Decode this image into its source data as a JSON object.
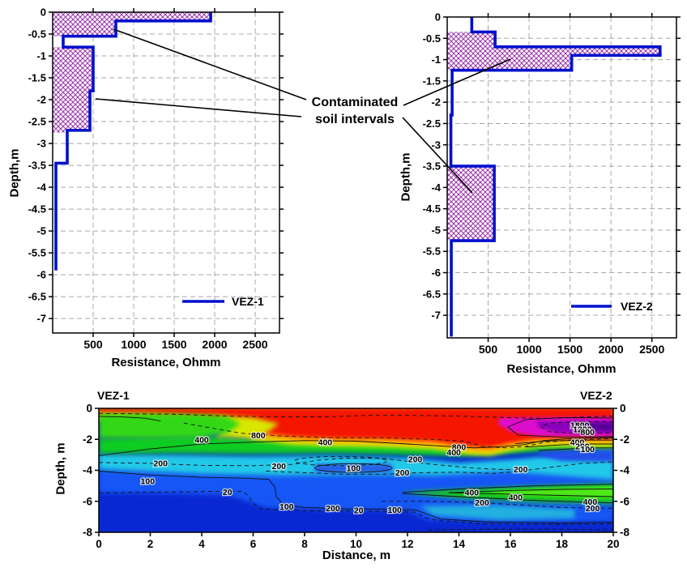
{
  "annotation": {
    "line1": "Contaminated",
    "line2": "soil intervals"
  },
  "colors": {
    "curve_blue": "#0010CC",
    "hatch_purple": "#9933AA",
    "grid_gray": "#A8A8A8",
    "contour_line": "#111111",
    "field_deep_blue": "#0A28D2",
    "field_mid_blue": "#1857F5",
    "field_cyan": "#20C8E8",
    "field_green": "#10CC20",
    "field_yellow": "#E8E800",
    "field_orange": "#FF9800",
    "field_red": "#F51505",
    "field_magenta": "#DD10CC",
    "field_violet": "#8800BB"
  },
  "chart_data": [
    {
      "type": "line",
      "id": "vez1",
      "legend": "VEZ-1",
      "xlabel": "Resistance, Ohmm",
      "ylabel": "Depth,m",
      "xlim": [
        0,
        2800
      ],
      "depth_max": 7.33,
      "xticks": [
        500,
        1000,
        1500,
        2000,
        2500
      ],
      "yticks": [
        0,
        -0.5,
        -1,
        -1.5,
        -2,
        -2.5,
        -3,
        -3.5,
        -4,
        -4.5,
        -5,
        -5.5,
        -6,
        -6.5,
        -7
      ],
      "steps": [
        [
          0,
          0.2,
          1950
        ],
        [
          0.2,
          0.55,
          780
        ],
        [
          0.55,
          0.8,
          130
        ],
        [
          0.8,
          1.8,
          500
        ],
        [
          1.8,
          2.7,
          460
        ],
        [
          2.7,
          3.45,
          180
        ],
        [
          3.45,
          5.9,
          40
        ]
      ],
      "contaminated_intervals": [
        [
          0,
          0.55
        ],
        [
          0.8,
          2.75
        ]
      ]
    },
    {
      "type": "line",
      "id": "vez2",
      "legend": "VEZ-2",
      "xlabel": "Resistance, Ohmm",
      "ylabel": "Depth,m",
      "xlim": [
        0,
        2800
      ],
      "depth_max": 7.53,
      "xticks": [
        500,
        1000,
        1500,
        2000,
        2500
      ],
      "yticks": [
        0,
        -0.5,
        -1,
        -1.5,
        -2,
        -2.5,
        -3,
        -3.5,
        -4,
        -4.5,
        -5,
        -5.5,
        -6,
        -6.5,
        -7
      ],
      "steps": [
        [
          0,
          0.35,
          300
        ],
        [
          0.35,
          0.7,
          585
        ],
        [
          0.7,
          0.9,
          2600
        ],
        [
          0.9,
          1.25,
          1520
        ],
        [
          1.25,
          2.3,
          60
        ],
        [
          2.3,
          3.5,
          45
        ],
        [
          3.5,
          5.25,
          575
        ],
        [
          5.25,
          7.5,
          50
        ]
      ],
      "contaminated_intervals": [
        [
          0.35,
          1.25
        ],
        [
          3.5,
          5.25
        ]
      ]
    },
    {
      "type": "heatmap",
      "id": "section",
      "left_label": "VEZ-1",
      "right_label": "VEZ-2",
      "xlabel": "Distance, m",
      "ylabel": "Depth, m",
      "xlim": [
        0,
        20
      ],
      "ylim": [
        -8,
        0
      ],
      "xticks": [
        0,
        2,
        4,
        6,
        8,
        10,
        12,
        14,
        16,
        18,
        20
      ],
      "yticks": [
        0,
        -2,
        -4,
        -6,
        -8
      ],
      "contour_levels": [
        20,
        100,
        200,
        400,
        800,
        1200,
        1800
      ],
      "labels": [
        {
          "v": "800",
          "x": 6.2,
          "d": 1.75
        },
        {
          "v": "400",
          "x": 4.0,
          "d": 2.05
        },
        {
          "v": "400",
          "x": 8.8,
          "d": 2.2
        },
        {
          "v": "800",
          "x": 14.0,
          "d": 2.5
        },
        {
          "v": "400",
          "x": 13.8,
          "d": 2.85
        },
        {
          "v": "200",
          "x": 12.3,
          "d": 3.3
        },
        {
          "v": "200",
          "x": 2.4,
          "d": 3.55
        },
        {
          "v": "200",
          "x": 7.0,
          "d": 3.75
        },
        {
          "v": "100",
          "x": 9.9,
          "d": 3.88
        },
        {
          "v": "200",
          "x": 11.8,
          "d": 4.15
        },
        {
          "v": "200",
          "x": 16.4,
          "d": 3.95
        },
        {
          "v": "100",
          "x": 1.9,
          "d": 4.7
        },
        {
          "v": "20",
          "x": 5.0,
          "d": 5.4
        },
        {
          "v": "100",
          "x": 7.3,
          "d": 6.35
        },
        {
          "v": "200",
          "x": 9.1,
          "d": 6.45
        },
        {
          "v": "20",
          "x": 10.1,
          "d": 6.6
        },
        {
          "v": "100",
          "x": 11.5,
          "d": 6.55
        },
        {
          "v": "200",
          "x": 14.9,
          "d": 6.1
        },
        {
          "v": "400",
          "x": 14.5,
          "d": 5.45
        },
        {
          "v": "400",
          "x": 16.2,
          "d": 5.75
        },
        {
          "v": "400",
          "x": 19.1,
          "d": 6.05
        },
        {
          "v": "200",
          "x": 19.2,
          "d": 6.45
        },
        {
          "v": "1800",
          "x": 18.7,
          "d": 1.1
        },
        {
          "v": "1200",
          "x": 18.8,
          "d": 1.35
        },
        {
          "v": "800",
          "x": 19.0,
          "d": 1.55
        },
        {
          "v": "400",
          "x": 18.6,
          "d": 2.2
        },
        {
          "v": "200",
          "x": 18.8,
          "d": 2.45
        },
        {
          "v": "100",
          "x": 19.0,
          "d": 2.65
        }
      ]
    }
  ]
}
